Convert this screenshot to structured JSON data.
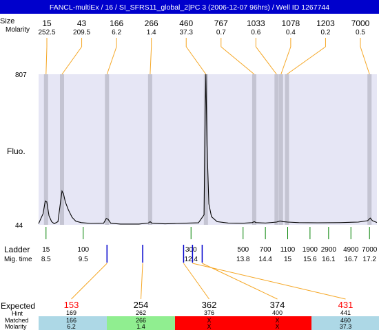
{
  "title": "FANCL-multiEx / 16 / SI_SFRS11_global_2|PC 3 (2006-12-07 96hrs) / Well ID 1267744",
  "top_labels": {
    "size": "Size",
    "molarity": "Molarity"
  },
  "row_labels": {
    "fluo": "Fluo.",
    "ladder": "Ladder",
    "mig_time": "Mig. time",
    "expected": "Expected",
    "hint": "Hint",
    "matched": "Matched",
    "molarity": "Molarity"
  },
  "colors": {
    "plot_bg": "#E6E6F5",
    "band": "#C4C4D2",
    "connector": "#F5A623",
    "marker": "#0000CC",
    "ladder_tick": "#008000",
    "expected_red": "#FF0000",
    "cell_blue": "#ADD8E6",
    "cell_green": "#90EE90",
    "cell_red": "#FF0000",
    "title_bg": "#0000CC"
  },
  "chart_data": {
    "type": "line",
    "title": "FANCL-multiEx / 16 / SI_SFRS11_global_2|PC 3 (2006-12-07 96hrs) / Well ID 1267744",
    "ylabel": "Fluo.",
    "xlabel": "Mig. time",
    "ylim": [
      44,
      807
    ],
    "xlim": [
      8.3,
      17.4
    ],
    "y_ticks": [
      44,
      807
    ],
    "peaks": [
      {
        "size": "15",
        "molarity": "252.5",
        "time": 8.5
      },
      {
        "size": "43",
        "molarity": "209.5",
        "time": 8.93
      },
      {
        "size": "166",
        "molarity": "6.2",
        "time": 10.14
      },
      {
        "size": "266",
        "molarity": "1.4",
        "time": 11.3
      },
      {
        "size": "460",
        "molarity": "37.3",
        "time": 12.8
      },
      {
        "size": "767",
        "molarity": "0.7",
        "time": 14.1
      },
      {
        "size": "1033",
        "molarity": "0.6",
        "time": 14.7
      },
      {
        "size": "1078",
        "molarity": "0.4",
        "time": 14.82
      },
      {
        "size": "1203",
        "molarity": "0.2",
        "time": 14.98
      },
      {
        "size": "7000",
        "molarity": "0.5",
        "time": 17.2
      }
    ],
    "ladder": [
      {
        "size": "15",
        "time": "8.5",
        "t": 8.5
      },
      {
        "size": "100",
        "time": "9.5",
        "t": 9.5
      },
      {
        "size": "300",
        "time": "12.4",
        "t": 12.4
      },
      {
        "size": "500",
        "time": "13.8",
        "t": 13.8
      },
      {
        "size": "700",
        "time": "14.4",
        "t": 14.4
      },
      {
        "size": "1100",
        "time": "15",
        "t": 15.0
      },
      {
        "size": "1900",
        "time": "15.6",
        "t": 15.6
      },
      {
        "size": "2900",
        "time": "16.1",
        "t": 16.1
      },
      {
        "size": "4900",
        "time": "16.7",
        "t": 16.7
      },
      {
        "size": "7000",
        "time": "17.2",
        "t": 17.2
      }
    ],
    "markers": [
      10.14,
      11.1,
      12.2,
      12.44,
      12.7
    ],
    "trace": [
      [
        8.3,
        50
      ],
      [
        8.42,
        100
      ],
      [
        8.48,
        165
      ],
      [
        8.52,
        160
      ],
      [
        8.58,
        90
      ],
      [
        8.65,
        60
      ],
      [
        8.72,
        50
      ],
      [
        8.82,
        60
      ],
      [
        8.88,
        145
      ],
      [
        8.93,
        215
      ],
      [
        8.97,
        200
      ],
      [
        9.02,
        160
      ],
      [
        9.1,
        120
      ],
      [
        9.2,
        82
      ],
      [
        9.3,
        62
      ],
      [
        9.45,
        55
      ],
      [
        9.7,
        51
      ],
      [
        10.05,
        52
      ],
      [
        10.12,
        76
      ],
      [
        10.17,
        72
      ],
      [
        10.24,
        52
      ],
      [
        10.5,
        48
      ],
      [
        11.0,
        48
      ],
      [
        11.25,
        53
      ],
      [
        11.3,
        60
      ],
      [
        11.35,
        52
      ],
      [
        11.7,
        49
      ],
      [
        12.2,
        52
      ],
      [
        12.6,
        54
      ],
      [
        12.75,
        95
      ],
      [
        12.78,
        600
      ],
      [
        12.8,
        807
      ],
      [
        12.83,
        450
      ],
      [
        12.88,
        150
      ],
      [
        12.95,
        85
      ],
      [
        13.1,
        60
      ],
      [
        13.4,
        53
      ],
      [
        13.8,
        52
      ],
      [
        14.05,
        55
      ],
      [
        14.1,
        60
      ],
      [
        14.15,
        55
      ],
      [
        14.4,
        53
      ],
      [
        14.7,
        58
      ],
      [
        14.8,
        63
      ],
      [
        14.88,
        60
      ],
      [
        15.0,
        58
      ],
      [
        15.3,
        55
      ],
      [
        15.8,
        54
      ],
      [
        16.4,
        55
      ],
      [
        16.9,
        58
      ],
      [
        17.15,
        65
      ],
      [
        17.22,
        78
      ],
      [
        17.28,
        65
      ],
      [
        17.4,
        56
      ]
    ],
    "expected": [
      {
        "value": "153",
        "color": "#FF0000",
        "hint": "169",
        "matched": "166",
        "molarity": "6.2",
        "cell": "#ADD8E6",
        "marker": 10.14
      },
      {
        "value": "254",
        "color": "#000000",
        "hint": "262",
        "matched": "266",
        "molarity": "1.4",
        "cell": "#90EE90",
        "marker": 11.1
      },
      {
        "value": "362",
        "color": "#000000",
        "hint": "376",
        "matched": "X",
        "molarity": "X",
        "cell": "#FF0000",
        "marker": 12.2
      },
      {
        "value": "374",
        "color": "#000000",
        "hint": "400",
        "matched": "X",
        "molarity": "X",
        "cell": "#FF0000",
        "marker": 12.7
      },
      {
        "value": "431",
        "color": "#FF0000",
        "hint": "441",
        "matched": "460",
        "molarity": "37.3",
        "cell": "#ADD8E6",
        "marker": 12.44
      }
    ]
  }
}
